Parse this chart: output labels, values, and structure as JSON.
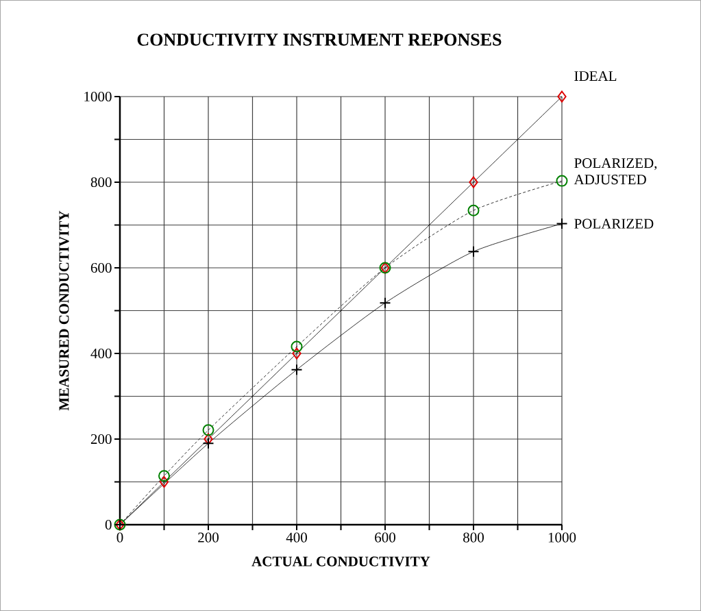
{
  "chart_data": {
    "type": "line",
    "title": "CONDUCTIVITY INSTRUMENT REPONSES",
    "xlabel": "ACTUAL CONDUCTIVITY",
    "ylabel": "MEASURED CONDUCTIVITY",
    "xlim": [
      0,
      1000
    ],
    "ylim": [
      0,
      1000
    ],
    "xticks": [
      0,
      {
        "value": 100,
        "label": null
      },
      200,
      {
        "value": 300,
        "label": null
      },
      400,
      {
        "value": 500,
        "label": null
      },
      600,
      {
        "value": 700,
        "label": null
      },
      800,
      {
        "value": 900,
        "label": null
      },
      1000
    ],
    "yticks": [
      0,
      {
        "value": 100,
        "label": null
      },
      200,
      {
        "value": 300,
        "label": null
      },
      400,
      {
        "value": 500,
        "label": null
      },
      600,
      {
        "value": 700,
        "label": null
      },
      800,
      {
        "value": 900,
        "label": null
      },
      1000
    ],
    "grid": true,
    "series": [
      {
        "name": "IDEAL",
        "color": "#dd0000",
        "marker": "diamond",
        "line_style": "solid",
        "x": [
          0,
          100,
          200,
          400,
          600,
          800,
          1000
        ],
        "values": [
          0,
          100,
          200,
          400,
          600,
          800,
          1000
        ]
      },
      {
        "name": "POLARIZED, ADJUSTED",
        "color": "#008000",
        "marker": "circle",
        "line_style": "dashed",
        "x": [
          0,
          100,
          200,
          400,
          600,
          800,
          1000
        ],
        "values": [
          0,
          114,
          221,
          416,
          600,
          734,
          803
        ]
      },
      {
        "name": "POLARIZED",
        "color": "#000000",
        "marker": "cross",
        "line_style": "solid",
        "x": [
          0,
          200,
          400,
          600,
          800,
          1000
        ],
        "values": [
          0,
          190,
          362,
          518,
          638,
          703
        ]
      }
    ]
  }
}
